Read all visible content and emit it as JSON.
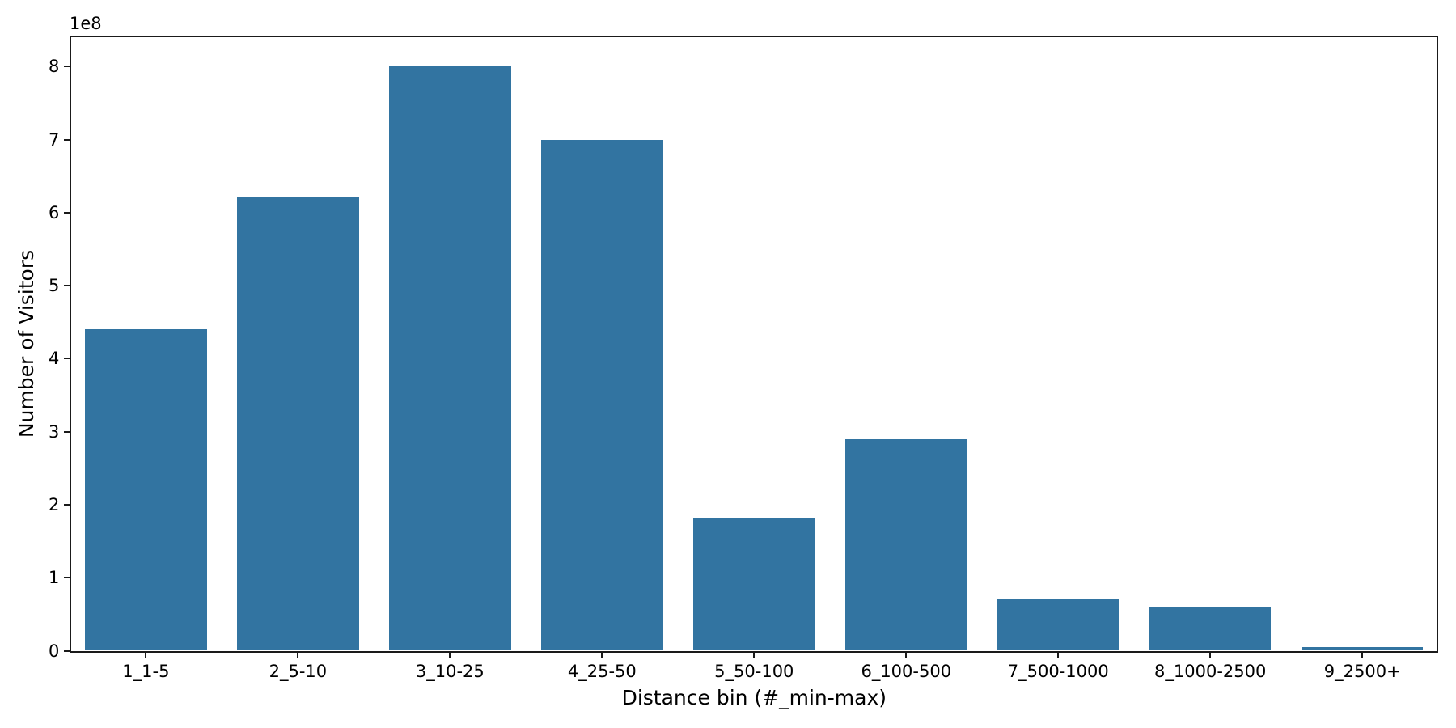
{
  "chart_data": {
    "type": "bar",
    "title": "",
    "xlabel": "Distance bin (#_min-max)",
    "ylabel": "Number of Visitors",
    "offset_label": "1e8",
    "categories": [
      "1_1-5",
      "2_5-10",
      "3_10-25",
      "4_25-50",
      "5_50-100",
      "6_100-500",
      "7_500-1000",
      "8_1000-2500",
      "9_2500+"
    ],
    "values": [
      440000000,
      622000000,
      802000000,
      700000000,
      181000000,
      290000000,
      71000000,
      59000000,
      5000000
    ],
    "ylim": [
      0,
      843000000
    ],
    "yticks": [
      0,
      100000000,
      200000000,
      300000000,
      400000000,
      500000000,
      600000000,
      700000000,
      800000000
    ],
    "ytick_labels": [
      "0",
      "1",
      "2",
      "3",
      "4",
      "5",
      "6",
      "7",
      "8"
    ],
    "grid": false,
    "legend": "none",
    "bar_color": "#3274a1",
    "axis_color": "#1a1a1a",
    "text_color": "#000000",
    "background": "#ffffff"
  }
}
